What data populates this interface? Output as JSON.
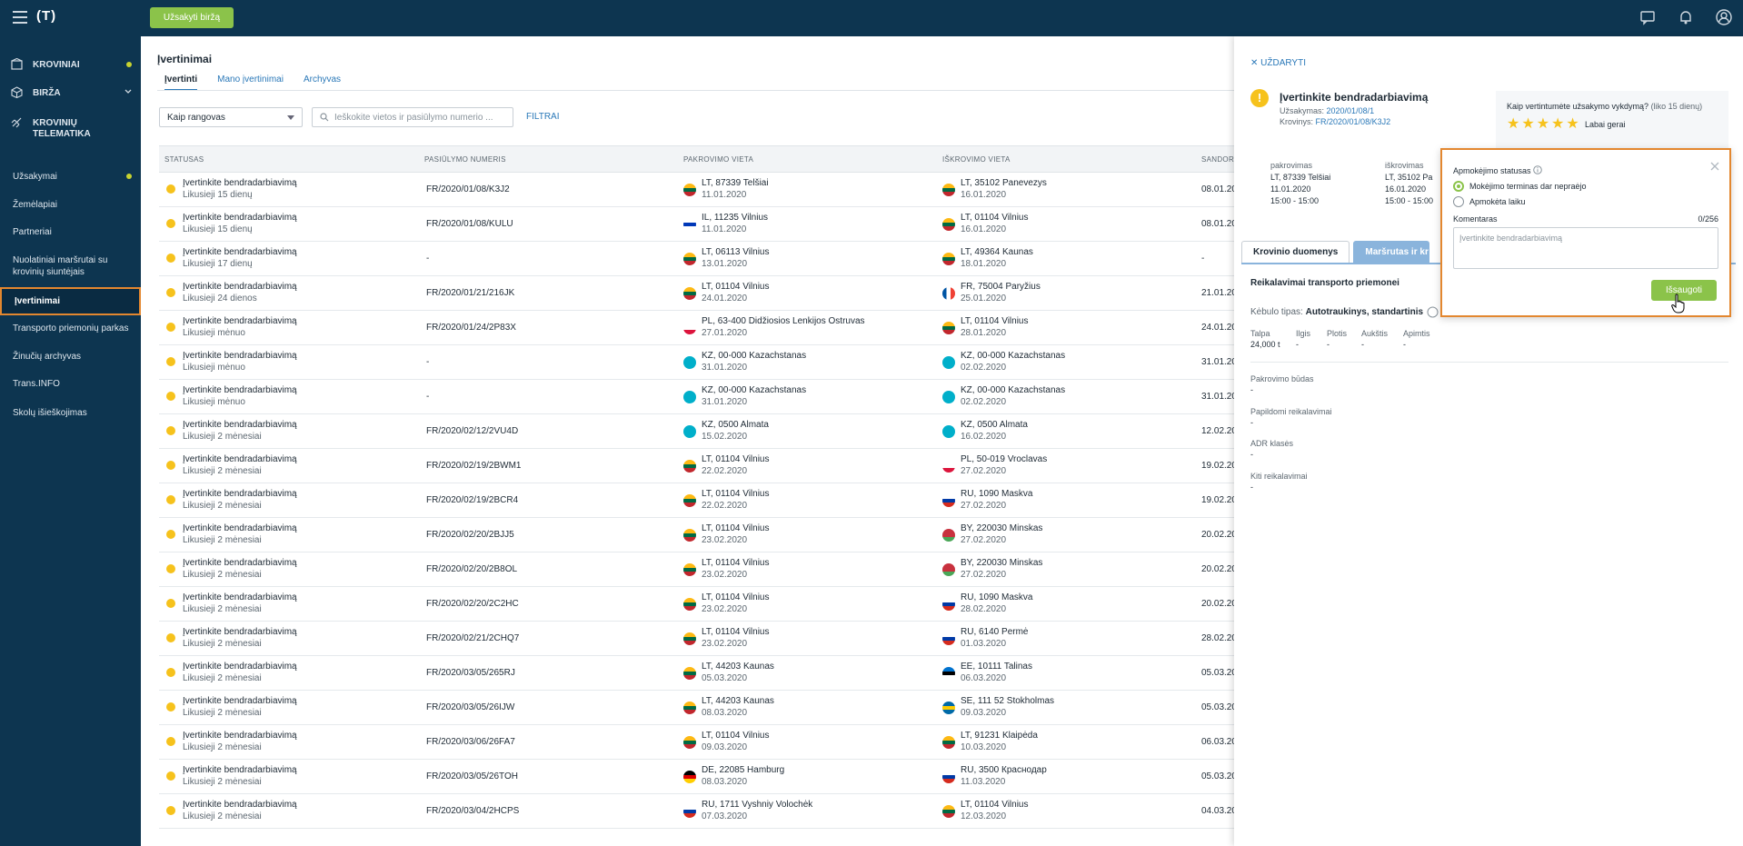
{
  "topbar": {
    "logo": "(T)",
    "order_button": "Užsakyti biržą"
  },
  "sidebar": {
    "main": [
      {
        "label": "KROVINIAI",
        "icon": "box-icon",
        "dot": true
      },
      {
        "label": "BIRŽA",
        "icon": "cube-icon",
        "chevron": true
      },
      {
        "label": "KROVINIŲ",
        "label2": "TELEMATIKA",
        "icon": "satellite-icon"
      }
    ],
    "items": [
      {
        "label": "Užsakymai",
        "dot": true
      },
      {
        "label": "Žemėlapiai"
      },
      {
        "label": "Partneriai"
      },
      {
        "label": "Nuolatiniai maršrutai su",
        "label2": "krovinių siuntėjais"
      },
      {
        "label": "Įvertinimai",
        "active": true
      },
      {
        "label": "Transporto priemonių parkas"
      },
      {
        "label": "Žinučių archyvas"
      },
      {
        "label": "Trans.INFO"
      },
      {
        "label": "Skolų išieškojimas"
      }
    ]
  },
  "page": {
    "title": "Įvertinimai",
    "tabs": [
      "Įvertinti",
      "Mano įvertinimai",
      "Archyvas"
    ],
    "role_select": "Kaip rangovas",
    "search_placeholder": "Ieškokite vietos ir pasiūlymo numerio ...",
    "filter": "FILTRAI"
  },
  "table": {
    "headers": [
      "STATUSAS",
      "PASIŪLYMO NUMERIS",
      "PAKROVIMO VIETA",
      "IŠKROVIMO VIETA",
      "SANDORI"
    ],
    "rows": [
      {
        "status": "Įvertinkite bendradarbiavimą",
        "left": "Likusieji 15 dienų",
        "num": "FR/2020/01/08/K3J2",
        "from_flag": "lt",
        "from": "LT, 87339 Telšiai",
        "from_date": "11.01.2020",
        "to_flag": "lt",
        "to": "LT, 35102 Panevezys",
        "to_date": "16.01.2020",
        "date": "08.01.20"
      },
      {
        "status": "Įvertinkite bendradarbiavimą",
        "left": "Likusieji 15 dienų",
        "num": "FR/2020/01/08/KULU",
        "from_flag": "il",
        "from": "IL, 11235 Vilnius",
        "from_date": "11.01.2020",
        "to_flag": "lt",
        "to": "LT, 01104 Vilnius",
        "to_date": "16.01.2020",
        "date": "08.01.20"
      },
      {
        "status": "Įvertinkite bendradarbiavimą",
        "left": "Likusieji 17 dienų",
        "num": "-",
        "from_flag": "lt",
        "from": "LT, 06113 Vilnius",
        "from_date": "13.01.2020",
        "to_flag": "lt",
        "to": "LT, 49364 Kaunas",
        "to_date": "18.01.2020",
        "date": "-"
      },
      {
        "status": "Įvertinkite bendradarbiavimą",
        "left": "Likusieji 24 dienos",
        "num": "FR/2020/01/21/216JK",
        "from_flag": "lt",
        "from": "LT, 01104 Vilnius",
        "from_date": "24.01.2020",
        "to_flag": "fr",
        "to": "FR, 75004 Paryžius",
        "to_date": "25.01.2020",
        "date": "21.01.20"
      },
      {
        "status": "Įvertinkite bendradarbiavimą",
        "left": "Likusieji mėnuo",
        "num": "FR/2020/01/24/2P83X",
        "from_flag": "pl",
        "from": "PL, 63-400 Didžiosios Lenkijos Ostruvas",
        "from_date": "27.01.2020",
        "to_flag": "lt",
        "to": "LT, 01104 Vilnius",
        "to_date": "28.01.2020",
        "date": "24.01.20"
      },
      {
        "status": "Įvertinkite bendradarbiavimą",
        "left": "Likusieji mėnuo",
        "num": "-",
        "from_flag": "kz",
        "from": "KZ, 00-000 Kazachstanas",
        "from_date": "31.01.2020",
        "to_flag": "kz",
        "to": "KZ, 00-000 Kazachstanas",
        "to_date": "02.02.2020",
        "date": "31.01.20"
      },
      {
        "status": "Įvertinkite bendradarbiavimą",
        "left": "Likusieji mėnuo",
        "num": "-",
        "from_flag": "kz",
        "from": "KZ, 00-000 Kazachstanas",
        "from_date": "31.01.2020",
        "to_flag": "kz",
        "to": "KZ, 00-000 Kazachstanas",
        "to_date": "02.02.2020",
        "date": "31.01.20"
      },
      {
        "status": "Įvertinkite bendradarbiavimą",
        "left": "Likusieji 2 mėnesiai",
        "num": "FR/2020/02/12/2VU4D",
        "from_flag": "kz",
        "from": "KZ, 0500 Almata",
        "from_date": "15.02.2020",
        "to_flag": "kz",
        "to": "KZ, 0500 Almata",
        "to_date": "16.02.2020",
        "date": "12.02.20"
      },
      {
        "status": "Įvertinkite bendradarbiavimą",
        "left": "Likusieji 2 mėnesiai",
        "num": "FR/2020/02/19/2BWM1",
        "from_flag": "lt",
        "from": "LT, 01104 Vilnius",
        "from_date": "22.02.2020",
        "to_flag": "pl",
        "to": "PL, 50-019 Vroclavas",
        "to_date": "27.02.2020",
        "date": "19.02.20"
      },
      {
        "status": "Įvertinkite bendradarbiavimą",
        "left": "Likusieji 2 mėnesiai",
        "num": "FR/2020/02/19/2BCR4",
        "from_flag": "lt",
        "from": "LT, 01104 Vilnius",
        "from_date": "22.02.2020",
        "to_flag": "ru",
        "to": "RU, 1090 Maskva",
        "to_date": "27.02.2020",
        "date": "19.02.20"
      },
      {
        "status": "Įvertinkite bendradarbiavimą",
        "left": "Likusieji 2 mėnesiai",
        "num": "FR/2020/02/20/2BJJ5",
        "from_flag": "lt",
        "from": "LT, 01104 Vilnius",
        "from_date": "23.02.2020",
        "to_flag": "by",
        "to": "BY, 220030 Minskas",
        "to_date": "27.02.2020",
        "date": "20.02.20"
      },
      {
        "status": "Įvertinkite bendradarbiavimą",
        "left": "Likusieji 2 mėnesiai",
        "num": "FR/2020/02/20/2B8OL",
        "from_flag": "lt",
        "from": "LT, 01104 Vilnius",
        "from_date": "23.02.2020",
        "to_flag": "by",
        "to": "BY, 220030 Minskas",
        "to_date": "27.02.2020",
        "date": "20.02.20"
      },
      {
        "status": "Įvertinkite bendradarbiavimą",
        "left": "Likusieji 2 mėnesiai",
        "num": "FR/2020/02/20/2C2HC",
        "from_flag": "lt",
        "from": "LT, 01104 Vilnius",
        "from_date": "23.02.2020",
        "to_flag": "ru",
        "to": "RU, 1090 Maskva",
        "to_date": "28.02.2020",
        "date": "20.02.20"
      },
      {
        "status": "Įvertinkite bendradarbiavimą",
        "left": "Likusieji 2 mėnesiai",
        "num": "FR/2020/02/21/2CHQ7",
        "from_flag": "lt",
        "from": "LT, 01104 Vilnius",
        "from_date": "23.02.2020",
        "to_flag": "ru",
        "to": "RU, 6140 Permė",
        "to_date": "01.03.2020",
        "date": "28.02.20"
      },
      {
        "status": "Įvertinkite bendradarbiavimą",
        "left": "Likusieji 2 mėnesiai",
        "num": "FR/2020/03/05/265RJ",
        "from_flag": "lt",
        "from": "LT, 44203 Kaunas",
        "from_date": "05.03.2020",
        "to_flag": "ee",
        "to": "EE, 10111 Talinas",
        "to_date": "06.03.2020",
        "date": "05.03.20"
      },
      {
        "status": "Įvertinkite bendradarbiavimą",
        "left": "Likusieji 2 mėnesiai",
        "num": "FR/2020/03/05/26IJW",
        "from_flag": "lt",
        "from": "LT, 44203 Kaunas",
        "from_date": "08.03.2020",
        "to_flag": "se",
        "to": "SE, 111 52 Stokholmas",
        "to_date": "09.03.2020",
        "date": "05.03.20"
      },
      {
        "status": "Įvertinkite bendradarbiavimą",
        "left": "Likusieji 2 mėnesiai",
        "num": "FR/2020/03/06/26FA7",
        "from_flag": "lt",
        "from": "LT, 01104 Vilnius",
        "from_date": "09.03.2020",
        "to_flag": "lt",
        "to": "LT, 91231 Klaipėda",
        "to_date": "10.03.2020",
        "date": "06.03.20"
      },
      {
        "status": "Įvertinkite bendradarbiavimą",
        "left": "Likusieji 2 mėnesiai",
        "num": "FR/2020/03/05/26TOH",
        "from_flag": "de",
        "from": "DE, 22085 Hamburg",
        "from_date": "08.03.2020",
        "to_flag": "ru",
        "to": "RU, 3500 Краснодар",
        "to_date": "11.03.2020",
        "date": "05.03.20"
      },
      {
        "status": "Įvertinkite bendradarbiavimą",
        "left": "Likusieji 2 mėnesiai",
        "num": "FR/2020/03/04/2HCPS",
        "from_flag": "ru",
        "from": "RU, 1711 Vyshniy Volochėk",
        "from_date": "07.03.2020",
        "to_flag": "lt",
        "to": "LT, 01104 Vilnius",
        "to_date": "12.03.2020",
        "date": "04.03.20"
      }
    ]
  },
  "panel": {
    "close": "UŽDARYTI",
    "title": "Įvertinkite bendradarbiavimą",
    "order_label": "Užsakymas:",
    "order_value": "2020/01/08/1",
    "cargo_label": "Krovinys:",
    "cargo_value": "FR/2020/01/08/K3J2",
    "rate_question": "Kaip vertintumėte užsakymo vykdymą?",
    "rate_left": "(liko 15 dienų)",
    "stars": "★★★★★",
    "rate_label": "Labai gerai",
    "loading": {
      "h": "pakrovimas",
      "place": "LT, 87339 Telšiai",
      "date": "11.01.2020",
      "time": "15:00 - 15:00"
    },
    "unloading": {
      "h": "iškrovimas",
      "place": "LT, 35102 Pa",
      "date": "16.01.2020",
      "time": "15:00 - 15:00"
    },
    "tabs": [
      "Krovinio duomenys",
      "Maršrutas ir kro"
    ],
    "section_title": "Reikalavimai transporto priemonei",
    "body_type_label": "Kėbulo tipas:",
    "body_type_value": "Autotraukinys, standartinis",
    "dims": [
      {
        "label": "Talpa",
        "value": "24,000 t"
      },
      {
        "label": "Ilgis",
        "value": "-"
      },
      {
        "label": "Plotis",
        "value": "-"
      },
      {
        "label": "Aukštis",
        "value": "-"
      },
      {
        "label": "Apimtis",
        "value": "-"
      }
    ],
    "fields": [
      {
        "label": "Pakrovimo būdas",
        "value": "-"
      },
      {
        "label": "Papildomi reikalavimai",
        "value": "-"
      },
      {
        "label": "ADR klasės",
        "value": "-"
      },
      {
        "label": "Kiti reikalavimai",
        "value": "-"
      }
    ]
  },
  "popup": {
    "label": "Apmokėjimo statusas",
    "options": [
      "Mokėjimo terminas dar nepraėjo",
      "Apmokėta laiku"
    ],
    "comment_label": "Komentaras",
    "counter": "0/256",
    "placeholder": "Įvertinkite bendradarbiavimą",
    "save": "Išsaugoti"
  },
  "colors": {
    "navy": "#0d3550",
    "accent": "#8bc34a",
    "highlight": "#e3872f",
    "link": "#2a78b8",
    "warning": "#f6c21c"
  }
}
